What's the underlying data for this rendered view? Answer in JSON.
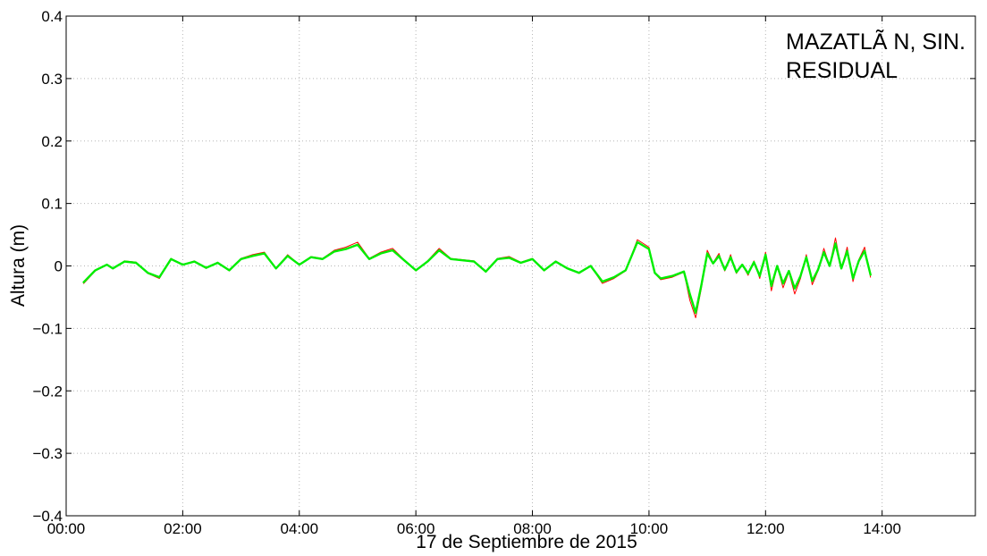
{
  "chart_data": {
    "type": "line",
    "annotation_lines": [
      "MAZATLÃ N, SIN.",
      "RESIDUAL"
    ],
    "xlabel": "17 de Septiembre de 2015",
    "ylabel": "Altura (m)",
    "xlim": [
      "00:00",
      "15:36"
    ],
    "ylim": [
      -0.4,
      0.4
    ],
    "x_ticks": [
      "00:00",
      "02:00",
      "04:00",
      "06:00",
      "08:00",
      "10:00",
      "12:00",
      "14:00"
    ],
    "y_ticks": [
      0.4,
      0.3,
      0.2,
      0.1,
      0,
      -0.1,
      -0.2,
      -0.3,
      -0.4
    ],
    "y_tick_labels": [
      "0.4",
      "0.3",
      "0.2",
      "0.1",
      "0",
      "−0.1",
      "−0.2",
      "−0.3",
      "−0.4"
    ],
    "grid": true,
    "series": [
      {
        "color": "#ff0000",
        "x": [
          "00:18",
          "00:30",
          "00:42",
          "00:48",
          "01:00",
          "01:12",
          "01:24",
          "01:36",
          "01:48",
          "02:00",
          "02:12",
          "02:24",
          "02:36",
          "02:48",
          "03:00",
          "03:12",
          "03:24",
          "03:36",
          "03:48",
          "04:00",
          "04:12",
          "04:24",
          "04:36",
          "04:48",
          "05:00",
          "05:12",
          "05:24",
          "05:36",
          "05:48",
          "06:00",
          "06:12",
          "06:24",
          "06:36",
          "06:48",
          "07:00",
          "07:12",
          "07:24",
          "07:36",
          "07:48",
          "08:00",
          "08:12",
          "08:24",
          "08:36",
          "08:48",
          "09:00",
          "09:12",
          "09:24",
          "09:36",
          "09:48",
          "10:00",
          "10:06",
          "10:12",
          "10:24",
          "10:36",
          "10:42",
          "10:48",
          "10:54",
          "11:00",
          "11:06",
          "11:12",
          "11:18",
          "11:24",
          "11:30",
          "11:36",
          "11:42",
          "11:48",
          "11:54",
          "12:00",
          "12:06",
          "12:12",
          "12:18",
          "12:24",
          "12:30",
          "12:36",
          "12:42",
          "12:48",
          "12:54",
          "13:00",
          "13:06",
          "13:12",
          "13:18",
          "13:24",
          "13:30",
          "13:36",
          "13:42",
          "13:48"
        ],
        "y": [
          -0.028,
          -0.008,
          0.002,
          -0.005,
          0.008,
          0.006,
          -0.012,
          -0.02,
          0.012,
          0.002,
          0.008,
          -0.004,
          0.006,
          -0.008,
          0.012,
          0.018,
          0.022,
          -0.004,
          0.018,
          0.002,
          0.015,
          0.012,
          0.025,
          0.03,
          0.038,
          0.012,
          0.022,
          0.028,
          0.01,
          -0.008,
          0.008,
          0.028,
          0.012,
          0.01,
          0.008,
          -0.01,
          0.012,
          0.015,
          0.006,
          0.012,
          -0.008,
          0.008,
          -0.004,
          -0.012,
          0.0,
          -0.028,
          -0.02,
          -0.008,
          0.042,
          0.03,
          -0.012,
          -0.022,
          -0.018,
          -0.01,
          -0.055,
          -0.083,
          -0.035,
          0.025,
          0.005,
          0.02,
          -0.008,
          0.018,
          -0.012,
          0.002,
          -0.015,
          0.008,
          -0.02,
          0.022,
          -0.04,
          0.0,
          -0.035,
          -0.01,
          -0.045,
          -0.02,
          0.018,
          -0.03,
          -0.008,
          0.028,
          0.0,
          0.045,
          -0.005,
          0.03,
          -0.025,
          0.01,
          0.03,
          -0.018
        ]
      },
      {
        "color": "#00ee00",
        "x": [
          "00:18",
          "00:30",
          "00:42",
          "00:48",
          "01:00",
          "01:12",
          "01:24",
          "01:36",
          "01:48",
          "02:00",
          "02:12",
          "02:24",
          "02:36",
          "02:48",
          "03:00",
          "03:12",
          "03:24",
          "03:36",
          "03:48",
          "04:00",
          "04:12",
          "04:24",
          "04:36",
          "04:48",
          "05:00",
          "05:12",
          "05:24",
          "05:36",
          "05:48",
          "06:00",
          "06:12",
          "06:24",
          "06:36",
          "06:48",
          "07:00",
          "07:12",
          "07:24",
          "07:36",
          "07:48",
          "08:00",
          "08:12",
          "08:24",
          "08:36",
          "08:48",
          "09:00",
          "09:12",
          "09:24",
          "09:36",
          "09:48",
          "10:00",
          "10:06",
          "10:12",
          "10:24",
          "10:36",
          "10:42",
          "10:48",
          "10:54",
          "11:00",
          "11:06",
          "11:12",
          "11:18",
          "11:24",
          "11:30",
          "11:36",
          "11:42",
          "11:48",
          "11:54",
          "12:00",
          "12:06",
          "12:12",
          "12:18",
          "12:24",
          "12:30",
          "12:36",
          "12:42",
          "12:48",
          "12:54",
          "13:00",
          "13:06",
          "13:12",
          "13:18",
          "13:24",
          "13:30",
          "13:36",
          "13:42",
          "13:48"
        ],
        "y": [
          -0.026,
          -0.007,
          0.002,
          -0.004,
          0.007,
          0.005,
          -0.011,
          -0.018,
          0.011,
          0.002,
          0.007,
          -0.003,
          0.005,
          -0.007,
          0.011,
          0.016,
          0.02,
          -0.004,
          0.016,
          0.002,
          0.014,
          0.011,
          0.023,
          0.027,
          0.034,
          0.011,
          0.02,
          0.025,
          0.009,
          -0.007,
          0.007,
          0.025,
          0.011,
          0.009,
          0.007,
          -0.009,
          0.011,
          0.013,
          0.005,
          0.011,
          -0.007,
          0.007,
          -0.004,
          -0.011,
          0.0,
          -0.025,
          -0.018,
          -0.007,
          0.038,
          0.027,
          -0.011,
          -0.02,
          -0.016,
          -0.009,
          -0.045,
          -0.075,
          -0.03,
          0.02,
          0.004,
          0.016,
          -0.006,
          0.014,
          -0.01,
          0.002,
          -0.012,
          0.006,
          -0.016,
          0.018,
          -0.032,
          0.0,
          -0.028,
          -0.008,
          -0.036,
          -0.016,
          0.014,
          -0.024,
          -0.006,
          0.022,
          0.0,
          0.036,
          -0.004,
          0.024,
          -0.02,
          0.008,
          0.024,
          -0.014
        ]
      }
    ]
  }
}
